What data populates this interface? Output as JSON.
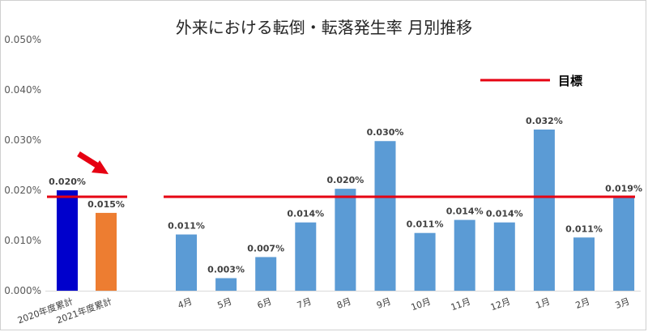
{
  "chart_data": {
    "type": "bar",
    "title": "外来における転倒・転落発生率 月別推移",
    "xlabel": "",
    "ylabel": "",
    "ylim": [
      0,
      0.05
    ],
    "y_ticks": [
      "0.000%",
      "0.010%",
      "0.020%",
      "0.030%",
      "0.040%",
      "0.050%"
    ],
    "categories": [
      "2020年度累計",
      "2021年度累計",
      "4月",
      "5月",
      "6月",
      "7月",
      "8月",
      "9月",
      "10月",
      "11月",
      "12月",
      "1月",
      "2月",
      "3月"
    ],
    "values": [
      0.02,
      0.0155,
      0.0112,
      0.0025,
      0.0067,
      0.0136,
      0.0203,
      0.0298,
      0.0115,
      0.0141,
      0.0136,
      0.0321,
      0.0106,
      0.0186
    ],
    "data_labels": [
      "0.020%",
      "0.015%",
      "0.011%",
      "0.003%",
      "0.007%",
      "0.014%",
      "0.020%",
      "0.030%",
      "0.011%",
      "0.014%",
      "0.014%",
      "0.032%",
      "0.011%",
      "0.019%"
    ],
    "bar_colors": [
      "#0000cc",
      "#ed7d31",
      "#5b9bd5",
      "#5b9bd5",
      "#5b9bd5",
      "#5b9bd5",
      "#5b9bd5",
      "#5b9bd5",
      "#5b9bd5",
      "#5b9bd5",
      "#5b9bd5",
      "#5b9bd5",
      "#5b9bd5",
      "#5b9bd5"
    ],
    "target": {
      "label": "目標",
      "value": 0.0187,
      "color": "#e60012"
    },
    "annotation": {
      "type": "arrow",
      "color": "#e60012"
    },
    "grid": false,
    "legend": "top-right"
  }
}
